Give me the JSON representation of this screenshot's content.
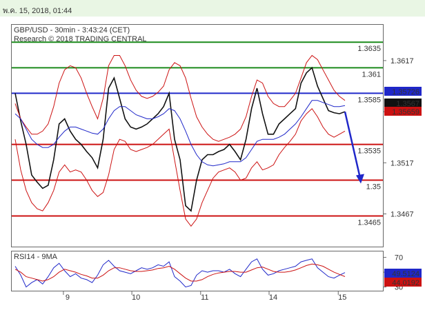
{
  "header": {
    "datetime": "พ.ค. 15, 2018, 01:44"
  },
  "chart_data": [
    {
      "type": "line",
      "title": "GBP/USD - 30min - 3:43:24 (CET)",
      "subtitle": "Research © 2018 TRADING CENTRAL",
      "x_tick_labels": [
        "9",
        "10",
        "11",
        "14",
        "15"
      ],
      "y_tick_labels": [
        "1.3617",
        "1.3567",
        "1.3517",
        "1.3467"
      ],
      "ylim": [
        1.3435,
        1.3652
      ],
      "horizontal_levels": [
        {
          "label": "1.3635",
          "value": 1.3635,
          "color": "#1a8a1a"
        },
        {
          "label": "1.361",
          "value": 1.361,
          "color": "#1a8a1a"
        },
        {
          "label": "1.3585",
          "value": 1.3585,
          "color": "#1f27c9"
        },
        {
          "label": "1.3535",
          "value": 1.3535,
          "color": "#cc1111"
        },
        {
          "label": "1.35",
          "value": 1.35,
          "color": "#cc1111"
        },
        {
          "label": "1.3465",
          "value": 1.3465,
          "color": "#cc1111"
        }
      ],
      "price_markers": [
        {
          "label": "1.35726",
          "value": 1.35726,
          "bg": "#1f27c9"
        },
        {
          "label": "1.3567",
          "value": 1.3567,
          "bg": "#111111"
        },
        {
          "label": "1.35659",
          "value": 1.35659,
          "bg": "#cc1111"
        }
      ],
      "series": [
        {
          "color": "#111111",
          "kind": "price",
          "values": [
            1.3585,
            1.3558,
            1.3535,
            1.3505,
            1.3498,
            1.3492,
            1.3495,
            1.352,
            1.3555,
            1.356,
            1.3548,
            1.354,
            1.3535,
            1.3528,
            1.3522,
            1.3512,
            1.354,
            1.359,
            1.36,
            1.358,
            1.356,
            1.3552,
            1.355,
            1.3552,
            1.3555,
            1.356,
            1.3565,
            1.3572,
            1.3585,
            1.354,
            1.352,
            1.3475,
            1.347,
            1.35,
            1.352,
            1.3525,
            1.3525,
            1.3528,
            1.353,
            1.3535,
            1.3528,
            1.352,
            1.354,
            1.357,
            1.359,
            1.3565,
            1.3545,
            1.3545,
            1.3555,
            1.356,
            1.3565,
            1.357,
            1.3595,
            1.3605,
            1.361,
            1.3592,
            1.358,
            1.3568,
            1.3566,
            1.3565,
            1.3567
          ]
        },
        {
          "color": "#cc1111",
          "kind": "bollinger-upper",
          "values": [
            1.3575,
            1.356,
            1.3552,
            1.3545,
            1.3545,
            1.3548,
            1.3555,
            1.3572,
            1.3595,
            1.3608,
            1.3612,
            1.361,
            1.36,
            1.3585,
            1.3572,
            1.356,
            1.358,
            1.3612,
            1.3622,
            1.3622,
            1.3612,
            1.3598,
            1.3588,
            1.3582,
            1.358,
            1.3582,
            1.3586,
            1.3592,
            1.3608,
            1.3615,
            1.3612,
            1.36,
            1.358,
            1.3562,
            1.3552,
            1.3545,
            1.354,
            1.3538,
            1.354,
            1.3542,
            1.3545,
            1.355,
            1.3562,
            1.3582,
            1.3598,
            1.3595,
            1.3582,
            1.3575,
            1.3572,
            1.3572,
            1.3578,
            1.3585,
            1.36,
            1.3615,
            1.3622,
            1.3618,
            1.3608,
            1.3598,
            1.3588,
            1.3582,
            1.3578
          ]
        },
        {
          "color": "#cc1111",
          "kind": "bollinger-lower",
          "values": [
            1.354,
            1.351,
            1.349,
            1.3478,
            1.3472,
            1.347,
            1.3478,
            1.349,
            1.3508,
            1.3515,
            1.3508,
            1.351,
            1.3508,
            1.35,
            1.349,
            1.3484,
            1.3488,
            1.3505,
            1.353,
            1.354,
            1.3538,
            1.353,
            1.3528,
            1.353,
            1.3532,
            1.3535,
            1.354,
            1.3545,
            1.355,
            1.352,
            1.349,
            1.3462,
            1.3455,
            1.3462,
            1.3478,
            1.349,
            1.3502,
            1.3508,
            1.351,
            1.3512,
            1.3508,
            1.35,
            1.3502,
            1.3512,
            1.3518,
            1.351,
            1.3512,
            1.3515,
            1.3525,
            1.3532,
            1.3538,
            1.3545,
            1.3558,
            1.3565,
            1.357,
            1.3562,
            1.3552,
            1.3545,
            1.3542,
            1.3545,
            1.3548
          ]
        },
        {
          "color": "#1f27c9",
          "kind": "moving-average",
          "values": [
            1.3565,
            1.356,
            1.355,
            1.354,
            1.3535,
            1.3532,
            1.3532,
            1.3535,
            1.3542,
            1.3548,
            1.3552,
            1.3552,
            1.355,
            1.3548,
            1.3546,
            1.3545,
            1.355,
            1.356,
            1.3568,
            1.3572,
            1.3572,
            1.3568,
            1.3564,
            1.3562,
            1.356,
            1.356,
            1.3562,
            1.3565,
            1.357,
            1.3568,
            1.356,
            1.3548,
            1.3535,
            1.3525,
            1.3518,
            1.3515,
            1.3514,
            1.3515,
            1.3516,
            1.3518,
            1.3518,
            1.3518,
            1.3522,
            1.353,
            1.3538,
            1.354,
            1.354,
            1.354,
            1.3542,
            1.3545,
            1.355,
            1.3555,
            1.3562,
            1.357,
            1.3578,
            1.3578,
            1.3576,
            1.3574,
            1.3572,
            1.3572,
            1.3573
          ]
        }
      ],
      "projection": {
        "from": 1.3567,
        "to": 1.3498,
        "color": "#1f27c9"
      }
    },
    {
      "type": "line",
      "title": "RSI14 - 9MA",
      "y_tick_labels": [
        "70",
        "50",
        "30"
      ],
      "ylim": [
        25,
        78
      ],
      "value_markers": [
        {
          "label": "49.5124",
          "value": 49.5124,
          "bg": "#1f27c9"
        },
        {
          "label": "44.0192",
          "value": 44.0192,
          "bg": "#cc1111"
        }
      ],
      "series": [
        {
          "color": "#1f27c9",
          "kind": "rsi",
          "values": [
            58,
            46,
            30,
            36,
            40,
            34,
            44,
            56,
            62,
            52,
            44,
            48,
            42,
            40,
            36,
            46,
            60,
            66,
            58,
            52,
            50,
            48,
            52,
            56,
            54,
            56,
            60,
            58,
            64,
            44,
            38,
            30,
            32,
            46,
            52,
            50,
            52,
            52,
            50,
            54,
            48,
            44,
            54,
            64,
            68,
            54,
            46,
            48,
            52,
            54,
            56,
            58,
            64,
            66,
            68,
            56,
            50,
            44,
            42,
            46,
            49.5
          ]
        },
        {
          "color": "#cc1111",
          "kind": "rsi-ma",
          "values": [
            54,
            50,
            44,
            42,
            40,
            38,
            40,
            44,
            50,
            54,
            52,
            50,
            47,
            45,
            42,
            42,
            46,
            52,
            56,
            56,
            54,
            52,
            51,
            51,
            52,
            53,
            55,
            56,
            58,
            54,
            48,
            42,
            38,
            38,
            40,
            44,
            47,
            49,
            50,
            51,
            51,
            50,
            50,
            53,
            56,
            57,
            54,
            51,
            50,
            50,
            51,
            53,
            56,
            59,
            61,
            60,
            58,
            54,
            50,
            47,
            44.02
          ]
        }
      ]
    }
  ]
}
